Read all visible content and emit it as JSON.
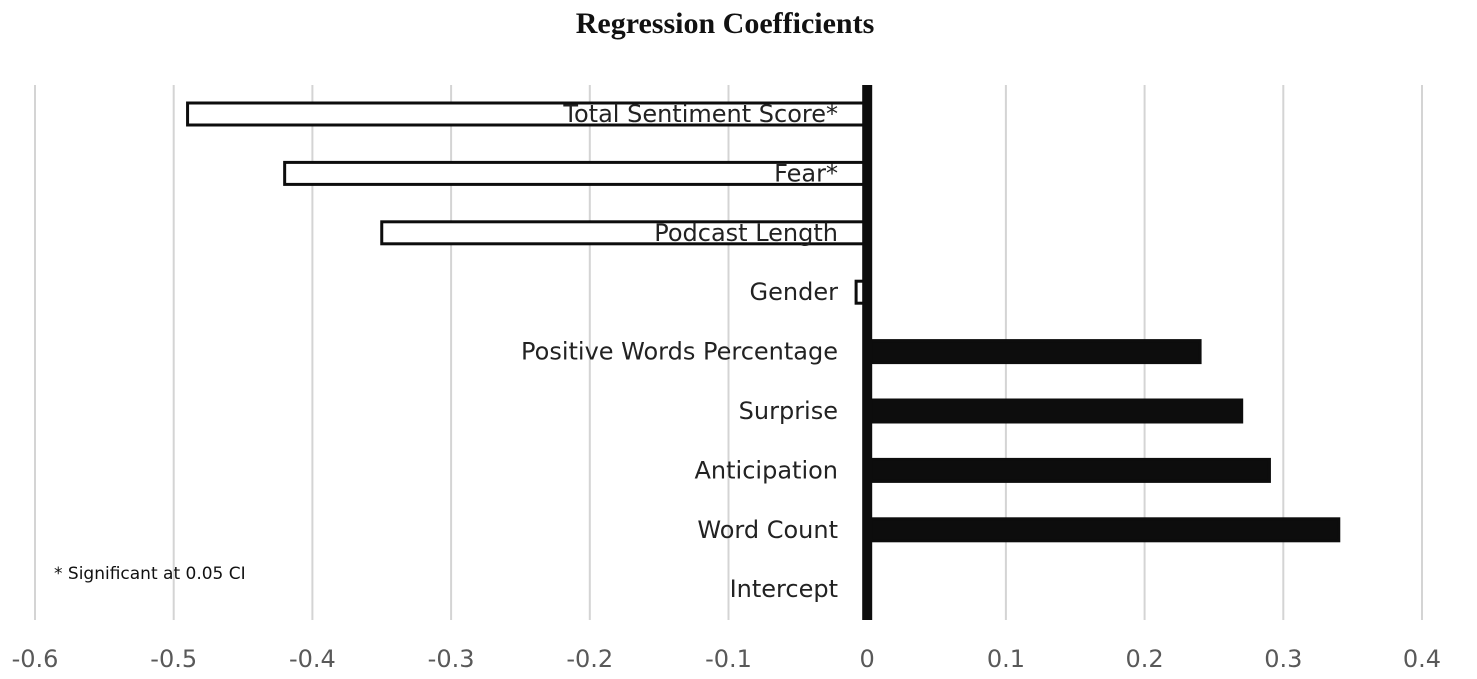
{
  "chart_data": {
    "type": "bar",
    "orientation": "horizontal",
    "title": "Regression Coefficients",
    "xlabel": "",
    "ylabel": "",
    "xlim": [
      -0.6,
      0.4
    ],
    "x_ticks": [
      "-0.6",
      "-0.5",
      "-0.4",
      "-0.3",
      "-0.2",
      "-0.1",
      "0",
      "0.1",
      "0.2",
      "0.3",
      "0.4"
    ],
    "x_tick_values": [
      -0.6,
      -0.5,
      -0.4,
      -0.3,
      -0.2,
      -0.1,
      0,
      0.1,
      0.2,
      0.3,
      0.4
    ],
    "grid": "vertical",
    "categories": [
      "Total Sentiment Score*",
      "Fear*",
      "Podcast Length",
      "Gender",
      "Positive Words Percentage",
      "Surprise",
      "Anticipation",
      "Word Count",
      "Intercept"
    ],
    "values": [
      -0.49,
      -0.42,
      -0.35,
      -0.008,
      0.24,
      0.27,
      0.29,
      0.34,
      0.0
    ],
    "negative_fill": "#ffffff",
    "positive_fill": "#0d0d0d",
    "bar_stroke": "#0d0d0d",
    "annotation": "* Significant at 0.05 CI"
  }
}
